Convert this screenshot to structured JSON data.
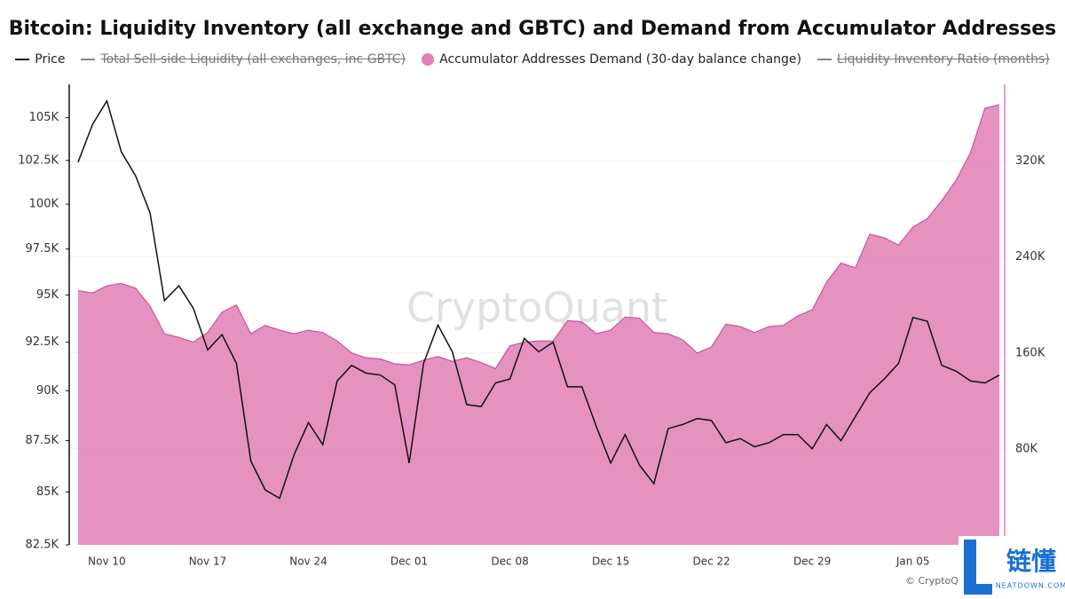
{
  "chart_data": {
    "type": "line-area",
    "title": "Bitcoin: Liquidity Inventory (all exchange and GBTC) and Demand from Accumulator Addresses",
    "categories": [
      null,
      null,
      "Nov 10",
      null,
      null,
      null,
      null,
      null,
      null,
      "Nov 17",
      null,
      null,
      null,
      null,
      null,
      null,
      "Nov 24",
      null,
      null,
      null,
      null,
      null,
      null,
      "Dec 01",
      null,
      null,
      null,
      null,
      null,
      null,
      "Dec 08",
      null,
      null,
      null,
      null,
      null,
      null,
      "Dec 15",
      null,
      null,
      null,
      null,
      null,
      null,
      "Dec 22",
      null,
      null,
      null,
      null,
      null,
      null,
      "Dec 29",
      null,
      null,
      null,
      null,
      null,
      null,
      "Jan 05",
      null,
      null,
      null,
      null,
      null,
      null
    ],
    "series": [
      {
        "name": "Price",
        "type": "line",
        "color": "#111111",
        "axis": "y",
        "values": [
          102400,
          104600,
          106000,
          103000,
          101600,
          99500,
          94700,
          95500,
          94300,
          92100,
          92900,
          91400,
          86500,
          85100,
          84700,
          86800,
          88400,
          87300,
          90500,
          91300,
          90900,
          90800,
          90300,
          86400,
          91400,
          93400,
          92000,
          89300,
          89200,
          90400,
          90600,
          92700,
          92000,
          92500,
          90200,
          90200,
          88200,
          86400,
          87800,
          86300,
          85400,
          88100,
          88300,
          88600,
          88500,
          87400,
          87600,
          87200,
          87400,
          87800,
          87800,
          87100,
          88300,
          87500,
          88700,
          89900,
          90600,
          91400,
          93800,
          93600,
          91300,
          91000,
          90500,
          90400,
          90800
        ]
      },
      {
        "name": "Total Sell-side Liquidity (all exchanges, inc GBTC)",
        "type": "line",
        "color": "#888888",
        "hidden": true
      },
      {
        "name": "Accumulator Addresses Demand (30-day balance change)",
        "type": "area",
        "color": "#e27fb6",
        "axis": "y2",
        "values": [
          212000,
          210000,
          216000,
          218000,
          214000,
          199000,
          176000,
          173000,
          169000,
          177000,
          194000,
          200000,
          176000,
          183000,
          179000,
          176000,
          179000,
          177000,
          170000,
          160000,
          156000,
          155000,
          151000,
          150000,
          154000,
          157000,
          153000,
          156000,
          152000,
          147000,
          166000,
          169000,
          170000,
          170000,
          187000,
          186000,
          176000,
          179000,
          190000,
          189000,
          177000,
          176000,
          171000,
          160000,
          165000,
          184000,
          182000,
          177000,
          182000,
          183000,
          191000,
          196000,
          219000,
          235000,
          231000,
          259000,
          256000,
          250000,
          265000,
          272000,
          287000,
          304000,
          327000,
          364000,
          367000
        ]
      },
      {
        "name": "Liquidity Inventory Ratio (months)",
        "type": "line",
        "color": "#888888",
        "hidden": true
      }
    ],
    "ylim": [
      82500,
      107000
    ],
    "ylog": true,
    "yticks": [
      {
        "value": 82500,
        "label": "82.5K"
      },
      {
        "value": 85000,
        "label": "85K"
      },
      {
        "value": 87500,
        "label": "87.5K"
      },
      {
        "value": 90000,
        "label": "90K"
      },
      {
        "value": 92500,
        "label": "92.5K"
      },
      {
        "value": 95000,
        "label": "95K"
      },
      {
        "value": 97500,
        "label": "97.5K"
      },
      {
        "value": 100000,
        "label": "100K"
      },
      {
        "value": 102500,
        "label": "102.5K"
      },
      {
        "value": 105000,
        "label": "105K"
      }
    ],
    "y2lim": [
      0,
      384000
    ],
    "y2ticks": [
      {
        "value": 80000,
        "label": "80K"
      },
      {
        "value": 160000,
        "label": "160K"
      },
      {
        "value": 240000,
        "label": "240K"
      },
      {
        "value": 320000,
        "label": "320K"
      }
    ],
    "grid": true,
    "watermark": "CryptoQuant",
    "credit": "© CryptoQua"
  },
  "overlay": {
    "logo_text": "链懂",
    "logo_subtext": "NEATDOWN.COM"
  }
}
